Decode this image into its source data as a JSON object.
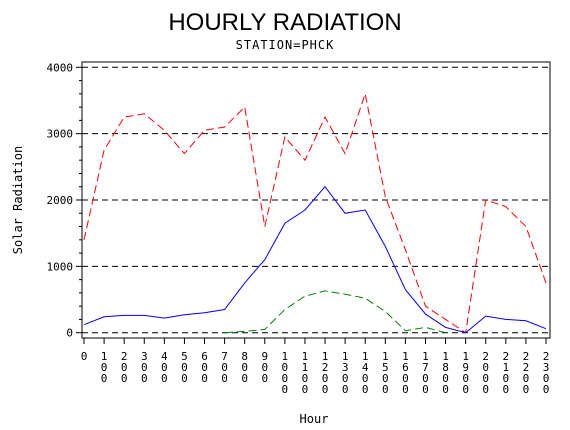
{
  "chart_data": {
    "type": "line",
    "title": "HOURLY RADIATION",
    "subtitle": "STATION=PHCK",
    "xlabel": "Hour",
    "ylabel": "Solar Radiation",
    "x": [
      0,
      100,
      200,
      300,
      400,
      500,
      600,
      700,
      800,
      900,
      1000,
      1100,
      1200,
      1300,
      1400,
      1500,
      1600,
      1700,
      1800,
      1900,
      2000,
      2100,
      2200,
      2300
    ],
    "x_tick_labels": [
      "0",
      "100",
      "200",
      "300",
      "400",
      "500",
      "600",
      "700",
      "800",
      "900",
      "1000",
      "1100",
      "1200",
      "1300",
      "1400",
      "1500",
      "1600",
      "1700",
      "1800",
      "1900",
      "2000",
      "2100",
      "2200",
      "2300"
    ],
    "y_ticks": [
      0,
      1000,
      2000,
      3000,
      4000
    ],
    "y_tick_labels": [
      "0",
      "1000",
      "2000",
      "3000",
      "4000"
    ],
    "xlim": [
      0,
      2300
    ],
    "ylim": [
      -80,
      4080
    ],
    "grid": "dashed-horizontal",
    "series": [
      {
        "color": "#ff0000",
        "style": "dashed",
        "values": [
          1400,
          2750,
          3250,
          3300,
          3050,
          2700,
          3050,
          3100,
          3400,
          1600,
          2950,
          2600,
          3250,
          2700,
          3600,
          2050,
          1250,
          400,
          200,
          0,
          2000,
          1900,
          1600,
          750
        ]
      },
      {
        "color": "#0000ff",
        "style": "solid",
        "values": [
          120,
          240,
          260,
          260,
          220,
          270,
          300,
          350,
          750,
          1100,
          1650,
          1850,
          2200,
          1800,
          1850,
          1300,
          650,
          280,
          80,
          0,
          250,
          200,
          180,
          60
        ]
      },
      {
        "color": "#008000",
        "style": "dashed",
        "values": [
          null,
          null,
          null,
          null,
          null,
          null,
          null,
          0,
          20,
          50,
          350,
          550,
          630,
          580,
          520,
          320,
          30,
          80,
          0,
          null,
          null,
          null,
          null,
          null
        ]
      }
    ]
  }
}
